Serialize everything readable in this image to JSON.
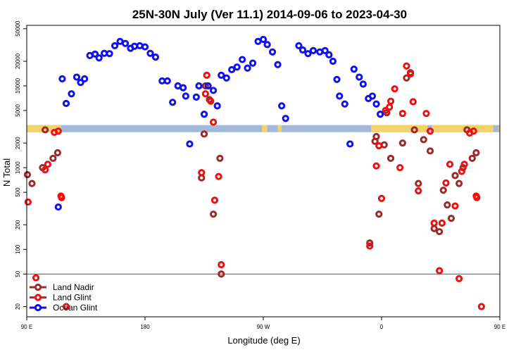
{
  "chart_data": {
    "type": "scatter",
    "title": "25N-30N July (Ver 11.1)   2014-09-06 to 2023-04-30",
    "xlabel": "Longitude (deg E)",
    "ylabel": "N Total",
    "xlim": [
      90,
      450
    ],
    "ylim": [
      15,
      55000
    ],
    "yscale": "log",
    "x_ticks": [
      {
        "value": 90,
        "label": "90 E"
      },
      {
        "value": 180,
        "label": "180"
      },
      {
        "value": 270,
        "label": "90 W"
      },
      {
        "value": 360,
        "label": "0"
      },
      {
        "value": 450,
        "label": "90 E"
      },
      {
        "value": 540,
        "label": "180"
      }
    ],
    "y_ticks": [
      {
        "value": 20,
        "label": "20"
      },
      {
        "value": 50,
        "label": "50"
      },
      {
        "value": 100,
        "label": "100"
      },
      {
        "value": 200,
        "label": "200"
      },
      {
        "value": 500,
        "label": "500"
      },
      {
        "value": 1000,
        "label": "1000"
      },
      {
        "value": 2000,
        "label": "2000"
      },
      {
        "value": 5000,
        "label": "5000"
      },
      {
        "value": 10000,
        "label": "10000"
      },
      {
        "value": 20000,
        "label": "20000"
      },
      {
        "value": 50000,
        "label": "50000"
      }
    ],
    "reference_line": 50,
    "legend_position": "bottom-left",
    "surface_band": {
      "y": 3000,
      "colors": {
        "ocean": "#a3b9da",
        "land": "#f3d26a"
      },
      "land_segments": [
        [
          90,
          116
        ],
        [
          269,
          273
        ],
        [
          281,
          284
        ],
        [
          352,
          395
        ],
        [
          398,
          445
        ],
        [
          449,
          450
        ]
      ]
    },
    "series": [
      {
        "name": "Land Nadir",
        "color": "#9c2a2a",
        "points": [
          [
            90.5,
            820
          ],
          [
            94,
            640
          ],
          [
            102,
            1000
          ],
          [
            104,
            2900
          ],
          [
            110,
            1300
          ],
          [
            113.5,
            1520
          ],
          [
            223,
            750
          ],
          [
            225,
            2580
          ],
          [
            226,
            10000
          ],
          [
            229,
            6800
          ],
          [
            232,
            270
          ],
          [
            237,
            1300
          ],
          [
            238,
            50
          ],
          [
            351,
            120
          ],
          [
            355,
            2100
          ],
          [
            356,
            2400
          ],
          [
            358,
            270
          ],
          [
            362,
            1900
          ],
          [
            364,
            4700
          ],
          [
            367,
            1300
          ],
          [
            376,
            2000
          ],
          [
            379,
            12500
          ],
          [
            382,
            14500
          ],
          [
            385,
            2900
          ],
          [
            388,
            640
          ],
          [
            392,
            2200
          ],
          [
            397,
            1600
          ],
          [
            400,
            180
          ],
          [
            404,
            165
          ],
          [
            407,
            530
          ],
          [
            410,
            350
          ],
          [
            413,
            240
          ],
          [
            416,
            800
          ],
          [
            419,
            640
          ],
          [
            422,
            1000
          ],
          [
            425,
            2900
          ],
          [
            429,
            1300
          ],
          [
            432,
            1520
          ]
        ]
      },
      {
        "name": "Land Glint",
        "color": "#ee1010",
        "points": [
          [
            91,
            380
          ],
          [
            97,
            45
          ],
          [
            104,
            940
          ],
          [
            106,
            1100
          ],
          [
            111,
            2700
          ],
          [
            114,
            2800
          ],
          [
            116,
            450
          ],
          [
            116.5,
            430
          ],
          [
            120,
            20
          ],
          [
            223,
            870
          ],
          [
            226,
            8000
          ],
          [
            227,
            13500
          ],
          [
            230,
            6500
          ],
          [
            232,
            3600
          ],
          [
            233,
            400
          ],
          [
            236,
            780
          ],
          [
            238,
            65
          ],
          [
            351,
            110
          ],
          [
            356,
            1050
          ],
          [
            358,
            1850
          ],
          [
            360,
            420
          ],
          [
            363,
            5000
          ],
          [
            366,
            5500
          ],
          [
            367,
            6500
          ],
          [
            370,
            9200
          ],
          [
            374,
            1000
          ],
          [
            376,
            4600
          ],
          [
            379,
            17500
          ],
          [
            382,
            14000
          ],
          [
            384,
            6400
          ],
          [
            388,
            520
          ],
          [
            394,
            4600
          ],
          [
            397,
            2800
          ],
          [
            400,
            210
          ],
          [
            404,
            55
          ],
          [
            406,
            210
          ],
          [
            409,
            650
          ],
          [
            412,
            1100
          ],
          [
            416,
            340
          ],
          [
            419,
            44
          ],
          [
            421,
            900
          ],
          [
            423,
            1100
          ],
          [
            427,
            2650
          ],
          [
            430,
            2800
          ],
          [
            432,
            450
          ],
          [
            432.5,
            430
          ],
          [
            436,
            20
          ]
        ]
      },
      {
        "name": "Ocean Glint",
        "color": "#1010ee",
        "points": [
          [
            114,
            330
          ],
          [
            117,
            12200
          ],
          [
            120,
            6100
          ],
          [
            124,
            8000
          ],
          [
            128,
            12800
          ],
          [
            131,
            11000
          ],
          [
            134,
            12200
          ],
          [
            138,
            23500
          ],
          [
            142,
            24500
          ],
          [
            145,
            22000
          ],
          [
            149,
            25000
          ],
          [
            153,
            24800
          ],
          [
            157,
            31000
          ],
          [
            161,
            35000
          ],
          [
            165,
            33000
          ],
          [
            169,
            28800
          ],
          [
            172,
            30500
          ],
          [
            176,
            31000
          ],
          [
            180,
            30000
          ],
          [
            184,
            25000
          ],
          [
            188,
            22500
          ],
          [
            193,
            11500
          ],
          [
            197,
            11500
          ],
          [
            201,
            6300
          ],
          [
            205,
            10000
          ],
          [
            209,
            9500
          ],
          [
            211,
            7500
          ],
          [
            214,
            1950
          ],
          [
            219,
            7300
          ],
          [
            221,
            10000
          ],
          [
            225,
            4500
          ],
          [
            228,
            10000
          ],
          [
            232,
            8800
          ],
          [
            235,
            5700
          ],
          [
            238,
            13500
          ],
          [
            242,
            12500
          ],
          [
            246,
            15800
          ],
          [
            250,
            17000
          ],
          [
            254,
            21000
          ],
          [
            258,
            16500
          ],
          [
            262,
            19000
          ],
          [
            266,
            35000
          ],
          [
            270,
            37000
          ],
          [
            273,
            32000
          ],
          [
            277,
            26000
          ],
          [
            281,
            18200
          ],
          [
            284,
            5700
          ],
          [
            287,
            4000
          ],
          [
            297,
            31000
          ],
          [
            300,
            27500
          ],
          [
            304,
            24800
          ],
          [
            308,
            27000
          ],
          [
            313,
            26000
          ],
          [
            317,
            27000
          ],
          [
            320,
            24000
          ],
          [
            323,
            20000
          ],
          [
            326,
            12000
          ],
          [
            328,
            7500
          ],
          [
            332,
            6000
          ],
          [
            336,
            1950
          ],
          [
            339,
            16000
          ],
          [
            343,
            12800
          ],
          [
            346,
            10500
          ],
          [
            350,
            7000
          ],
          [
            353,
            7500
          ],
          [
            356,
            6000
          ],
          [
            359,
            4500
          ]
        ]
      }
    ]
  },
  "labels": {
    "title": "25N-30N July (Ver 11.1)   2014-09-06 to 2023-04-30",
    "xlabel": "Longitude (deg E)",
    "ylabel": "N Total"
  },
  "legend": [
    {
      "name": "Land Nadir",
      "color": "#9c2a2a"
    },
    {
      "name": "Land Glint",
      "color": "#ee1010"
    },
    {
      "name": "Ocean Glint",
      "color": "#1010ee"
    }
  ]
}
